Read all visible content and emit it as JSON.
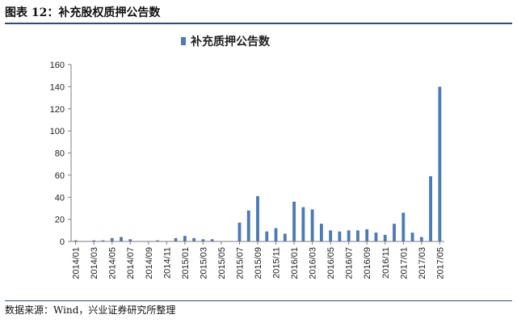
{
  "header": {
    "figure_title": "图表 12：补充股权质押公告数"
  },
  "footer": {
    "source": "数据来源：Wind，兴业证券研究所整理"
  },
  "colors": {
    "bar": "#4a7ab8",
    "header_rule": "#2b4d7b",
    "axis": "#7f7f7f"
  },
  "chart_data": {
    "type": "bar",
    "legend": {
      "label": "补充质押公告数",
      "position": "top-center"
    },
    "ylim": [
      0,
      160
    ],
    "yticks": [
      0,
      20,
      40,
      60,
      80,
      100,
      120,
      140,
      160
    ],
    "grid": false,
    "xtick_labels": [
      "2014/01",
      "2014/03",
      "2014/05",
      "2014/07",
      "2014/09",
      "2014/11",
      "2015/01",
      "2015/03",
      "2015/05",
      "2015/07",
      "2015/09",
      "2015/11",
      "2016/01",
      "2016/03",
      "2016/05",
      "2016/07",
      "2016/09",
      "2016/11",
      "2017/01",
      "2017/03",
      "2017/05"
    ],
    "categories": [
      "2014/01",
      "2014/02",
      "2014/03",
      "2014/04",
      "2014/05",
      "2014/06",
      "2014/07",
      "2014/08",
      "2014/09",
      "2014/10",
      "2014/11",
      "2014/12",
      "2015/01",
      "2015/02",
      "2015/03",
      "2015/04",
      "2015/05",
      "2015/06",
      "2015/07",
      "2015/08",
      "2015/09",
      "2015/10",
      "2015/11",
      "2015/12",
      "2016/01",
      "2016/02",
      "2016/03",
      "2016/04",
      "2016/05",
      "2016/06",
      "2016/07",
      "2016/08",
      "2016/09",
      "2016/10",
      "2016/11",
      "2016/12",
      "2017/01",
      "2017/02",
      "2017/03",
      "2017/04",
      "2017/05"
    ],
    "values": [
      1,
      0,
      1,
      1,
      3,
      4,
      2,
      0,
      0,
      1,
      0,
      3,
      5,
      3,
      2,
      2,
      0,
      0,
      17,
      28,
      41,
      9,
      12,
      7,
      36,
      31,
      29,
      16,
      10,
      9,
      10,
      10,
      11,
      8,
      6,
      16,
      26,
      8,
      4,
      59,
      140
    ]
  }
}
